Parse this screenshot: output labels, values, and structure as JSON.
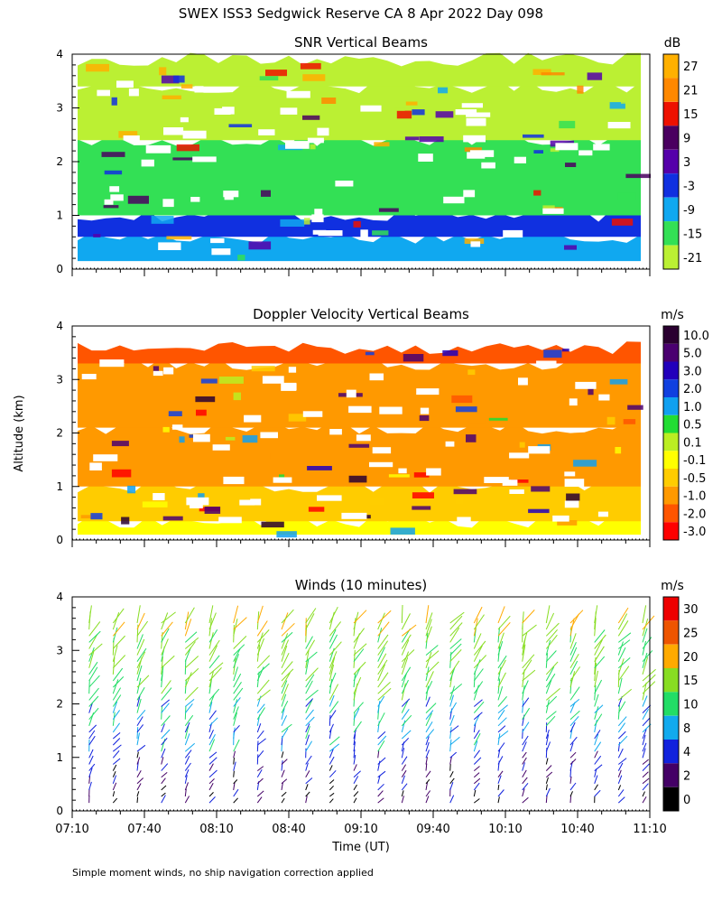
{
  "page_title": "SWEX ISS3 Sedgwick Reserve CA   8 Apr 2022 Day 098",
  "y_axis_label": "Altitude (km)",
  "x_axis_label": "Time (UT)",
  "footnote": "Simple moment winds, no ship navigation correction applied",
  "chart_data": [
    {
      "type": "heatmap",
      "title": "SNR Vertical Beams",
      "ylabel": "Altitude (km)",
      "ylim": [
        0,
        4
      ],
      "yticks": [
        "0",
        "1",
        "2",
        "3",
        "4"
      ],
      "xlim": [
        "07:10",
        "11:10"
      ],
      "colorbar_unit": "dB",
      "colorbar_labels": [
        "27",
        "21",
        "15",
        "9",
        "3",
        "-3",
        "-9",
        "-15",
        "-21"
      ],
      "colorbar_colors": [
        "#ffb000",
        "#ff8800",
        "#ee1100",
        "#4a0060",
        "#5500aa",
        "#1030e0",
        "#10a8f0",
        "#33e055",
        "#bbf033"
      ],
      "colorbar_bins": 9,
      "layers": [
        {
          "from_km": 0.15,
          "to_km": 0.6,
          "color": "#10a8f0",
          "level_db": -9
        },
        {
          "from_km": 0.6,
          "to_km": 1.0,
          "color": "#1030e0",
          "level_db": -3
        },
        {
          "from_km": 1.0,
          "to_km": 2.4,
          "color": "#33e055",
          "level_db": -15
        },
        {
          "from_km": 2.4,
          "to_km": 3.4,
          "color": "#bbf033",
          "level_db": -21
        },
        {
          "from_km": 3.4,
          "to_km": 3.9,
          "color": "#bbf033",
          "level_db": -21
        }
      ]
    },
    {
      "type": "heatmap",
      "title": "Doppler Velocity Vertical Beams",
      "ylabel": "Altitude (km)",
      "ylim": [
        0,
        4
      ],
      "yticks": [
        "0",
        "1",
        "2",
        "3",
        "4"
      ],
      "xlim": [
        "07:10",
        "11:10"
      ],
      "colorbar_unit": "m/s",
      "colorbar_labels": [
        "10.0",
        "5.0",
        "3.0",
        "2.0",
        "1.0",
        "0.5",
        "0.1",
        "-0.1",
        "-0.5",
        "-1.0",
        "-2.0",
        "-3.0"
      ],
      "colorbar_colors": [
        "#2a0030",
        "#4a0070",
        "#2200bb",
        "#1040e0",
        "#10a0f0",
        "#22dd33",
        "#bbee22",
        "#ffff00",
        "#ffcc00",
        "#ff9900",
        "#ff5500",
        "#ff0000"
      ],
      "colorbar_bins": 12,
      "layers": [
        {
          "from_km": 0.1,
          "to_km": 0.35,
          "color": "#ffff00",
          "level_ms": -0.1
        },
        {
          "from_km": 0.35,
          "to_km": 1.0,
          "color": "#ffcc00",
          "level_ms": -0.5
        },
        {
          "from_km": 1.0,
          "to_km": 2.1,
          "color": "#ff9900",
          "level_ms": -1.0
        },
        {
          "from_km": 2.1,
          "to_km": 3.3,
          "color": "#ff9900",
          "level_ms": -1.0
        },
        {
          "from_km": 3.3,
          "to_km": 3.6,
          "color": "#ff5500",
          "level_ms": -2.0
        }
      ]
    },
    {
      "type": "scatter",
      "title": "Winds (10 minutes)",
      "ylabel": "Altitude (km)",
      "xlabel": "Time (UT)",
      "ylim": [
        0,
        4
      ],
      "yticks": [
        "0",
        "1",
        "2",
        "3",
        "4"
      ],
      "x_tick_labels": [
        "07:10",
        "07:40",
        "08:10",
        "08:40",
        "09:10",
        "09:40",
        "10:10",
        "10:40",
        "11:10"
      ],
      "colorbar_unit": "m/s",
      "colorbar_labels": [
        "30",
        "25",
        "20",
        "15",
        "10",
        "8",
        "4",
        "2",
        "0"
      ],
      "colorbar_colors": [
        "#ee0000",
        "#ee5500",
        "#ffaa00",
        "#88dd22",
        "#22dd66",
        "#11aaee",
        "#1122dd",
        "#440066",
        "#000000"
      ],
      "colorbar_bins": 9,
      "profile_times": [
        "07:17",
        "07:27",
        "07:37",
        "07:47",
        "07:57",
        "08:07",
        "08:17",
        "08:27",
        "08:37",
        "08:47",
        "08:57",
        "09:07",
        "09:17",
        "09:27",
        "09:37",
        "09:47",
        "09:57",
        "10:07",
        "10:17",
        "10:27",
        "10:37",
        "10:47",
        "10:57",
        "11:07"
      ],
      "speed_profile": [
        {
          "alt_km": 0.3,
          "speed_ms": 2
        },
        {
          "alt_km": 0.8,
          "speed_ms": 4
        },
        {
          "alt_km": 1.3,
          "speed_ms": 8
        },
        {
          "alt_km": 1.8,
          "speed_ms": 10
        },
        {
          "alt_km": 2.3,
          "speed_ms": 15
        },
        {
          "alt_km": 2.9,
          "speed_ms": 15
        },
        {
          "alt_km": 3.5,
          "speed_ms": 20
        }
      ]
    }
  ]
}
